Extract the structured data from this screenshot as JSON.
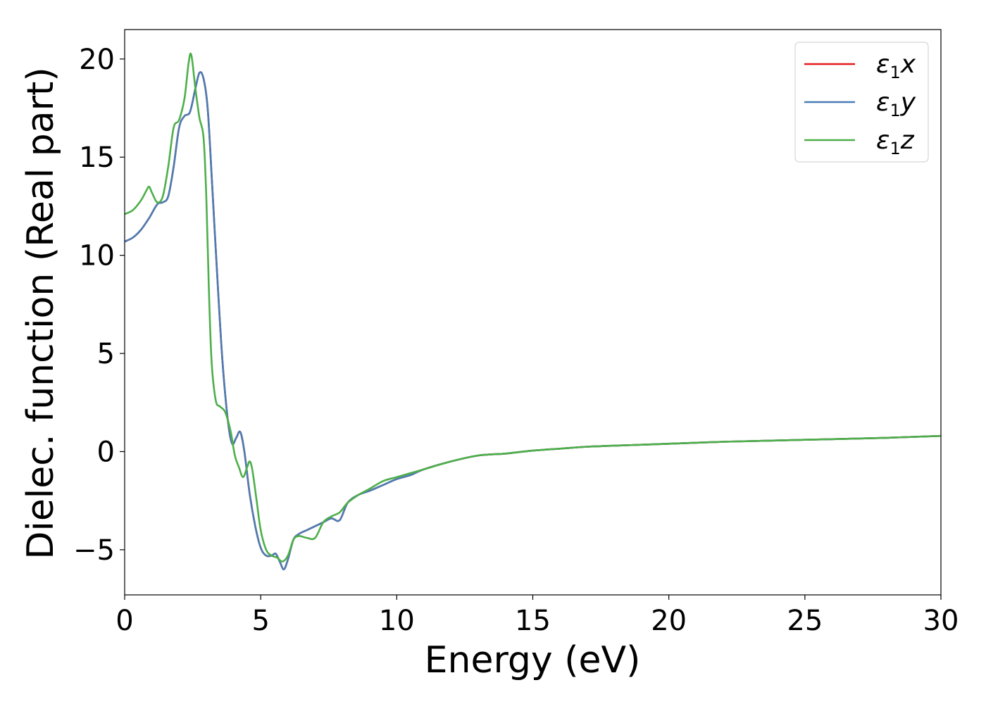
{
  "chart_data": {
    "type": "line",
    "xlabel": "Energy (eV)",
    "ylabel": "Dielec. function (Real part)",
    "xlim": [
      0,
      30
    ],
    "ylim": [
      -7.3,
      21.5
    ],
    "xticks": [
      0,
      5,
      10,
      15,
      20,
      25,
      30
    ],
    "xtick_labels": [
      "0",
      "5",
      "10",
      "15",
      "20",
      "25",
      "30"
    ],
    "yticks": [
      -5,
      0,
      5,
      10,
      15,
      20
    ],
    "ytick_labels": [
      "−5",
      "0",
      "5",
      "10",
      "15",
      "20"
    ],
    "grid": false,
    "legend_position": "top-right",
    "series": [
      {
        "name": "ε₁x",
        "legend_main": "ε",
        "legend_sub": "1",
        "legend_var": "x",
        "color": "#e41a1c",
        "x": [
          0,
          0.3,
          0.6,
          0.9,
          1.2,
          1.4,
          1.6,
          1.8,
          2.0,
          2.2,
          2.4,
          2.6,
          2.75,
          2.9,
          3.05,
          3.2,
          3.4,
          3.6,
          3.8,
          3.95,
          4.1,
          4.25,
          4.4,
          4.6,
          4.8,
          5.0,
          5.2,
          5.4,
          5.55,
          5.7,
          5.85,
          6.0,
          6.2,
          6.4,
          6.7,
          7.0,
          7.3,
          7.6,
          7.9,
          8.2,
          8.6,
          9.0,
          9.5,
          10.0,
          10.5,
          11.0,
          12.0,
          13.0,
          14.0,
          15.0,
          16.0,
          17.0,
          18.0,
          20.0,
          22.0,
          25.0,
          28.0,
          30.0
        ],
        "y": [
          10.7,
          10.9,
          11.3,
          11.9,
          12.6,
          12.7,
          13.0,
          14.5,
          16.5,
          17.1,
          17.3,
          18.5,
          19.3,
          19.0,
          17.5,
          14.0,
          9.0,
          4.5,
          1.5,
          0.4,
          0.7,
          1.0,
          0.0,
          -2.2,
          -3.8,
          -4.9,
          -5.3,
          -5.3,
          -5.2,
          -5.6,
          -6.0,
          -5.5,
          -4.5,
          -4.2,
          -4.0,
          -3.8,
          -3.6,
          -3.4,
          -3.5,
          -2.6,
          -2.2,
          -2.0,
          -1.7,
          -1.4,
          -1.2,
          -0.9,
          -0.5,
          -0.2,
          -0.1,
          0.05,
          0.15,
          0.25,
          0.3,
          0.4,
          0.5,
          0.6,
          0.7,
          0.8
        ]
      },
      {
        "name": "ε₁y",
        "legend_main": "ε",
        "legend_sub": "1",
        "legend_var": "y",
        "color": "#4a7db3",
        "x": [
          0,
          0.3,
          0.6,
          0.9,
          1.2,
          1.4,
          1.6,
          1.8,
          2.0,
          2.2,
          2.4,
          2.6,
          2.75,
          2.9,
          3.05,
          3.2,
          3.4,
          3.6,
          3.8,
          3.95,
          4.1,
          4.25,
          4.4,
          4.6,
          4.8,
          5.0,
          5.2,
          5.4,
          5.55,
          5.7,
          5.85,
          6.0,
          6.2,
          6.4,
          6.7,
          7.0,
          7.3,
          7.6,
          7.9,
          8.2,
          8.6,
          9.0,
          9.5,
          10.0,
          10.5,
          11.0,
          12.0,
          13.0,
          14.0,
          15.0,
          16.0,
          17.0,
          18.0,
          20.0,
          22.0,
          25.0,
          28.0,
          30.0
        ],
        "y": [
          10.7,
          10.9,
          11.3,
          11.9,
          12.6,
          12.7,
          13.0,
          14.5,
          16.5,
          17.1,
          17.3,
          18.5,
          19.3,
          19.0,
          17.5,
          14.0,
          9.0,
          4.5,
          1.5,
          0.4,
          0.7,
          1.0,
          0.0,
          -2.2,
          -3.8,
          -4.9,
          -5.3,
          -5.3,
          -5.2,
          -5.6,
          -6.0,
          -5.5,
          -4.5,
          -4.2,
          -4.0,
          -3.8,
          -3.6,
          -3.4,
          -3.5,
          -2.6,
          -2.2,
          -2.0,
          -1.7,
          -1.4,
          -1.2,
          -0.9,
          -0.5,
          -0.2,
          -0.1,
          0.05,
          0.15,
          0.25,
          0.3,
          0.4,
          0.5,
          0.6,
          0.7,
          0.8
        ]
      },
      {
        "name": "ε₁z",
        "legend_main": "ε",
        "legend_sub": "1",
        "legend_var": "z",
        "color": "#4daf4a",
        "x": [
          0,
          0.3,
          0.6,
          0.8,
          0.9,
          1.0,
          1.2,
          1.4,
          1.6,
          1.8,
          2.0,
          2.2,
          2.35,
          2.45,
          2.6,
          2.75,
          2.9,
          3.0,
          3.1,
          3.2,
          3.35,
          3.5,
          3.7,
          3.9,
          4.05,
          4.2,
          4.35,
          4.5,
          4.6,
          4.7,
          4.85,
          5.0,
          5.2,
          5.4,
          5.6,
          5.8,
          6.0,
          6.2,
          6.4,
          6.7,
          7.0,
          7.3,
          7.6,
          7.9,
          8.2,
          8.6,
          9.0,
          9.5,
          10.0,
          10.5,
          11.0,
          12.0,
          13.0,
          14.0,
          15.0,
          16.0,
          17.0,
          18.0,
          20.0,
          22.0,
          25.0,
          28.0,
          30.0
        ],
        "y": [
          12.1,
          12.3,
          12.8,
          13.3,
          13.5,
          13.2,
          12.7,
          13.0,
          14.5,
          16.5,
          16.9,
          18.0,
          19.8,
          20.2,
          18.5,
          17.0,
          16.0,
          13.0,
          8.0,
          4.5,
          2.6,
          2.3,
          2.0,
          1.0,
          -0.2,
          -0.8,
          -1.3,
          -0.8,
          -0.5,
          -1.0,
          -2.5,
          -4.0,
          -5.0,
          -5.3,
          -5.4,
          -5.6,
          -5.3,
          -4.5,
          -4.3,
          -4.4,
          -4.4,
          -3.6,
          -3.3,
          -3.1,
          -2.6,
          -2.2,
          -1.9,
          -1.5,
          -1.3,
          -1.1,
          -0.9,
          -0.5,
          -0.2,
          -0.1,
          0.05,
          0.15,
          0.25,
          0.3,
          0.4,
          0.5,
          0.6,
          0.7,
          0.8
        ]
      }
    ]
  }
}
